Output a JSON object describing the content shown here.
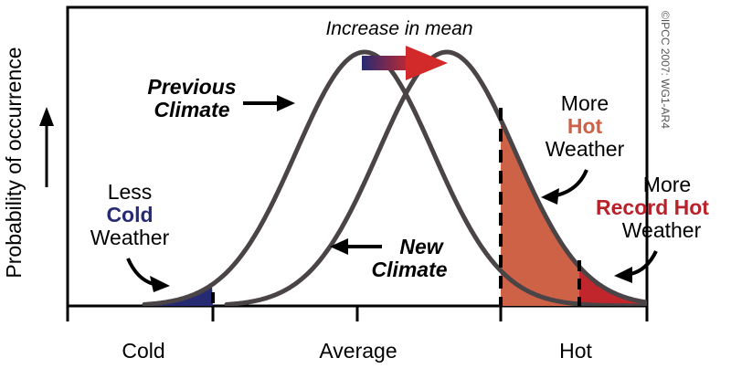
{
  "y_axis_label": "Probability of occurrence",
  "x_axis": {
    "ticks": [
      "Cold",
      "Average",
      "Hot"
    ]
  },
  "copyright": "©IPCC 2007: WG1-AR4",
  "labels": {
    "increase": "Increase in mean",
    "previous_line1": "Previous",
    "previous_line2": "Climate",
    "new_line1": "New",
    "new_line2": "Climate",
    "less": "Less",
    "cold": "Cold",
    "weather_cold": "Weather",
    "more_hot_1": "More",
    "hot": "Hot",
    "weather_hot": "Weather",
    "more_record_1": "More",
    "record_hot": "Record Hot",
    "weather_record": "Weather"
  },
  "colors": {
    "curve": "#4a4446",
    "cold_fill": "#262a73",
    "hot_fill": "#cd6247",
    "record_fill": "#c1262d",
    "cold_text": "#262a73",
    "hot_text": "#cd6247",
    "record_text": "#b8222b",
    "arrow_start": "#262a73",
    "arrow_end": "#d22a2a"
  }
}
